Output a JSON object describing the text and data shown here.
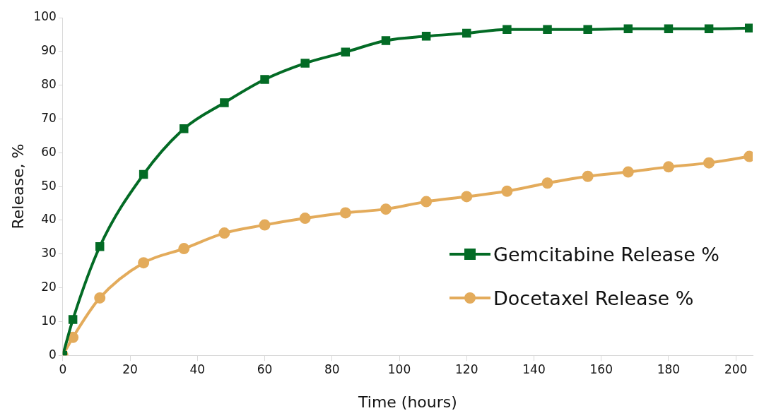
{
  "chart_data": {
    "type": "line",
    "xlabel": "Time (hours)",
    "ylabel": "Release, %",
    "x": [
      0,
      3,
      11,
      24,
      36,
      48,
      60,
      72,
      84,
      96,
      108,
      120,
      132,
      144,
      156,
      168,
      180,
      192,
      204
    ],
    "series": [
      {
        "name": "Gemcitabine Release %",
        "color": "#036b25",
        "marker": "square",
        "values": [
          0,
          10.6,
          32.2,
          53.6,
          67.1,
          74.8,
          81.7,
          86.5,
          89.8,
          93.2,
          94.5,
          95.4,
          96.5,
          96.5,
          96.5,
          96.7,
          96.7,
          96.7,
          96.9
        ]
      },
      {
        "name": "Docetaxel Release %",
        "color": "#e3ab5b",
        "marker": "circle",
        "values": [
          0,
          5.3,
          17,
          27.4,
          31.6,
          36.2,
          38.6,
          40.6,
          42.2,
          43.3,
          45.5,
          47,
          48.6,
          51,
          53,
          54.3,
          55.8,
          57,
          58.9
        ]
      }
    ],
    "xlim": [
      0,
      205
    ],
    "xticks": [
      0,
      20,
      40,
      60,
      80,
      100,
      120,
      140,
      160,
      180,
      200
    ],
    "ylim": [
      0,
      100
    ],
    "yticks": [
      0,
      10,
      20,
      30,
      40,
      50,
      60,
      70,
      80,
      90,
      100
    ],
    "grid": false,
    "legend": "right"
  }
}
